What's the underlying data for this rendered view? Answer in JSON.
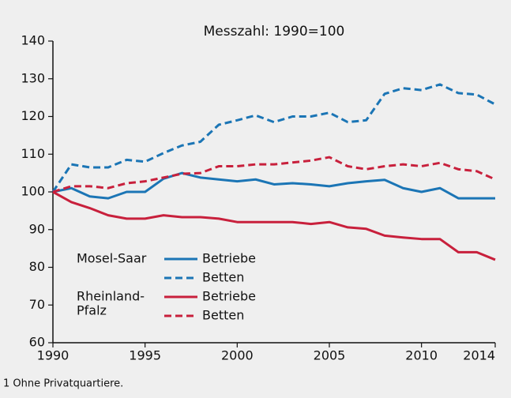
{
  "chart_data": {
    "type": "line",
    "title": "Messzahl: 1990=100",
    "footnote": "1 Ohne Privatquartiere.",
    "x": [
      1990,
      1991,
      1992,
      1993,
      1994,
      1995,
      1996,
      1997,
      1998,
      1999,
      2000,
      2001,
      2002,
      2003,
      2004,
      2005,
      2006,
      2007,
      2008,
      2009,
      2010,
      2011,
      2012,
      2013,
      2014
    ],
    "xlim": [
      1990,
      2014
    ],
    "xticks": [
      1990,
      1995,
      2000,
      2005,
      2010,
      2014
    ],
    "ylim": [
      60,
      140
    ],
    "yticks": [
      60,
      70,
      80,
      90,
      100,
      110,
      120,
      130,
      140
    ],
    "legend_groups": [
      {
        "label": [
          "Mosel-Saar"
        ],
        "color": "#1b75b5"
      },
      {
        "label": [
          "Rheinland-",
          "Pfalz"
        ],
        "color": "#c8203c"
      }
    ],
    "series": [
      {
        "name": "Betriebe",
        "color": "#1b75b5",
        "dash": false,
        "values": [
          100,
          101,
          98.8,
          98.3,
          100,
          100,
          103.5,
          105,
          103.8,
          103.3,
          102.8,
          103.3,
          102,
          102.3,
          102,
          101.5,
          102.3,
          102.8,
          103.2,
          101,
          100,
          101,
          98.3,
          98.3,
          98.3
        ]
      },
      {
        "name": "Betten",
        "color": "#1b75b5",
        "dash": true,
        "values": [
          100,
          107.3,
          106.5,
          106.5,
          108.5,
          108,
          110.3,
          112.3,
          113.3,
          117.8,
          119,
          120.3,
          118.5,
          120,
          120,
          121,
          118.5,
          119,
          126,
          127.5,
          127,
          128.5,
          126.2,
          125.8,
          123.2
        ]
      },
      {
        "name": "Betriebe",
        "color": "#c8203c",
        "dash": false,
        "values": [
          100,
          97.3,
          95.7,
          93.8,
          92.9,
          92.9,
          93.8,
          93.3,
          93.3,
          92.9,
          92,
          92,
          92,
          92,
          91.5,
          92,
          90.6,
          90.2,
          88.4,
          87.9,
          87.5,
          87.5,
          84,
          84,
          82
        ]
      },
      {
        "name": "Betten",
        "color": "#c8203c",
        "dash": true,
        "values": [
          100,
          101.5,
          101.5,
          101,
          102.3,
          102.8,
          103.8,
          104.8,
          105,
          106.8,
          106.8,
          107.3,
          107.3,
          107.8,
          108.3,
          109.2,
          106.8,
          106,
          106.8,
          107.3,
          106.8,
          107.7,
          106,
          105.5,
          103.3
        ]
      }
    ]
  }
}
